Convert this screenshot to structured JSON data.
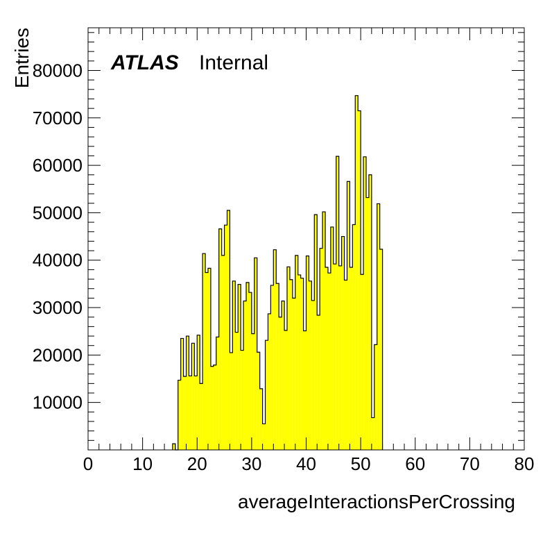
{
  "label": {
    "experiment": "ATLAS",
    "status": "Internal"
  },
  "chart_data": {
    "type": "bar",
    "subtype": "histogram",
    "xlabel": "averageInteractionsPerCrossing",
    "ylabel": "Entries",
    "xlim": [
      0,
      80
    ],
    "ylim": [
      0,
      89000
    ],
    "x_ticks": [
      0,
      10,
      20,
      30,
      40,
      50,
      60,
      70,
      80
    ],
    "y_ticks": [
      10000,
      20000,
      30000,
      40000,
      50000,
      60000,
      70000,
      80000
    ],
    "y_tick_labels": [
      "10000",
      "20000",
      "30000",
      "40000",
      "50000",
      "60000",
      "70000",
      "80000"
    ],
    "x_tick_labels": [
      "0",
      "10",
      "20",
      "30",
      "40",
      "50",
      "60",
      "70",
      "80"
    ],
    "bin_width": 0.5,
    "bin_start": 15.5,
    "values": [
      1300,
      0,
      14700,
      23500,
      15500,
      24000,
      15600,
      22500,
      15600,
      24200,
      14000,
      41400,
      37400,
      38300,
      17600,
      17900,
      23800,
      46600,
      41000,
      47400,
      50500,
      20500,
      35600,
      24800,
      34900,
      21000,
      31400,
      35300,
      33200,
      24500,
      40500,
      20600,
      12900,
      5500,
      23100,
      28700,
      34700,
      42200,
      35100,
      28000,
      31400,
      25200,
      38600,
      35900,
      32000,
      41000,
      36900,
      36200,
      25100,
      40900,
      35600,
      31500,
      49600,
      28400,
      42500,
      50200,
      38500,
      37300,
      47000,
      39200,
      61900,
      38800,
      45000,
      35800,
      56600,
      38500,
      47500,
      74700,
      71500,
      37000,
      61800,
      53200,
      58000,
      6800,
      22200,
      51900,
      42300
    ],
    "bar_color": "#ffff00",
    "edge_color": "#000000",
    "grid": false,
    "legend": "none"
  }
}
